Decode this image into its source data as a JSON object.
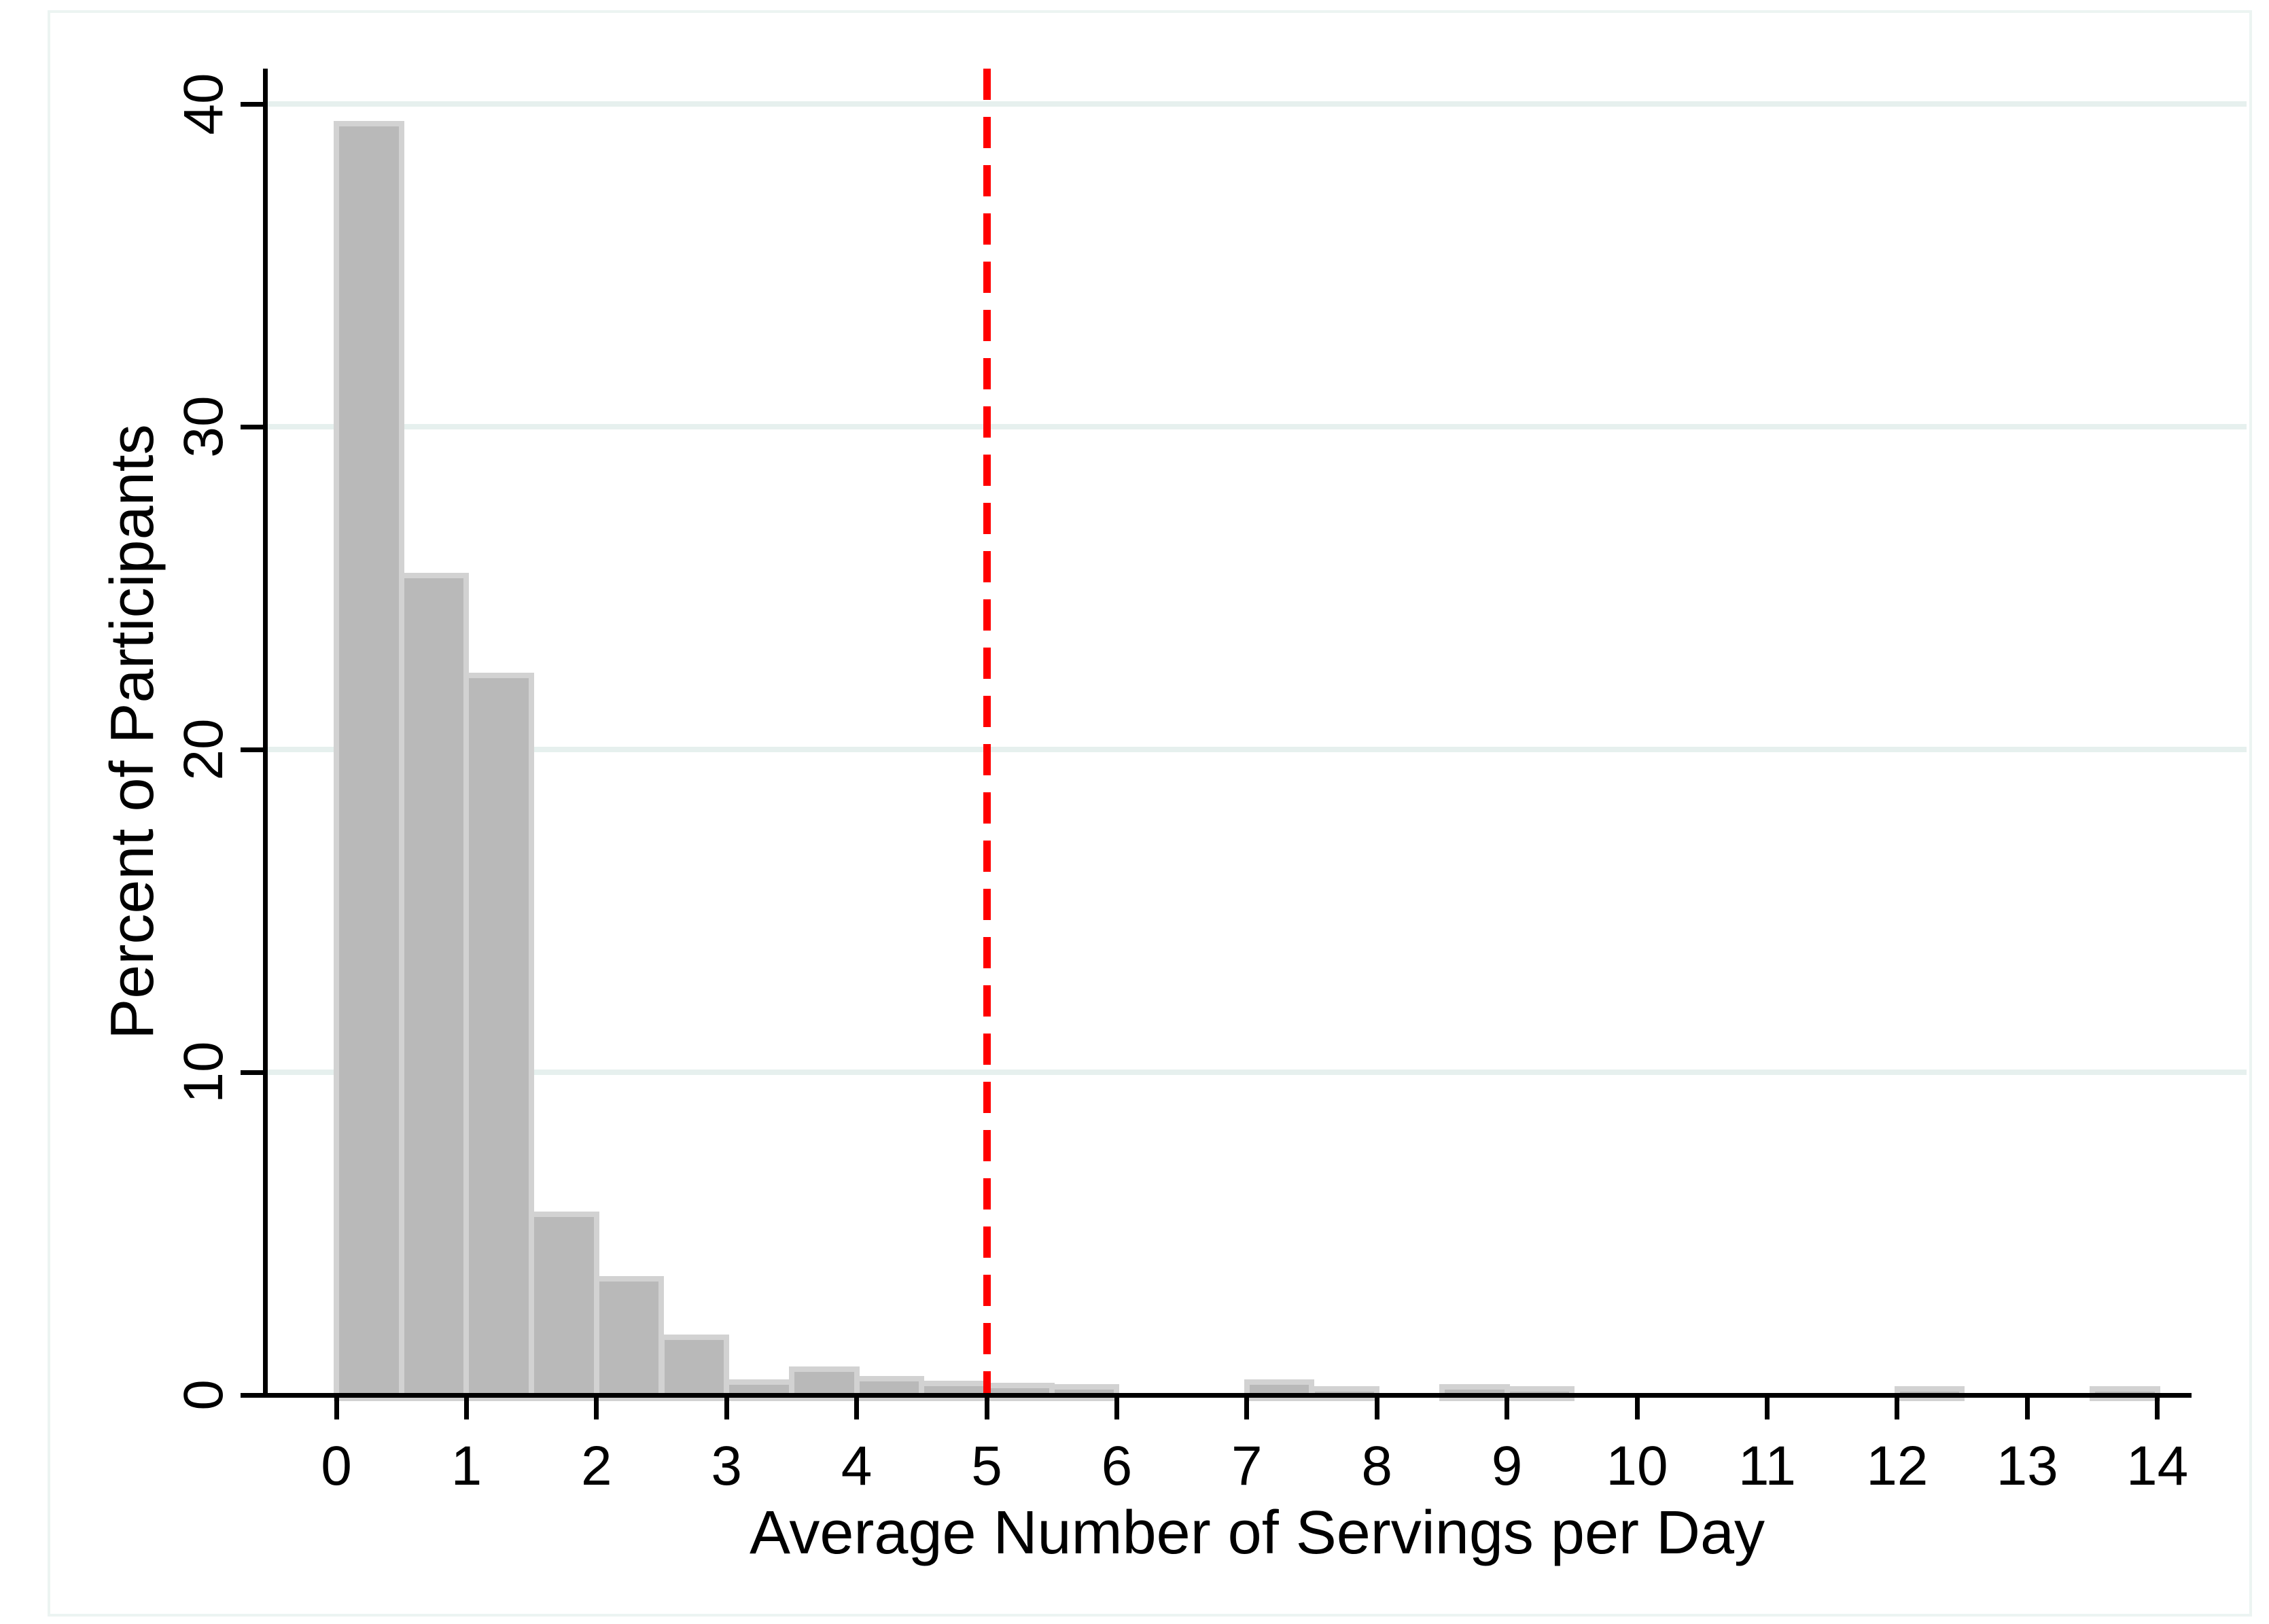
{
  "chart_data": {
    "type": "bar",
    "subtype": "histogram",
    "title": "",
    "xlabel": "Average Number of Servings per Day",
    "ylabel": "Percent of Participants",
    "x_tick_labels": [
      "0",
      "1",
      "2",
      "3",
      "4",
      "5",
      "6",
      "7",
      "8",
      "9",
      "10",
      "11",
      "12",
      "13",
      "14"
    ],
    "x_ticks": [
      0,
      1,
      2,
      3,
      4,
      5,
      6,
      7,
      8,
      9,
      10,
      11,
      12,
      13,
      14
    ],
    "y_tick_labels": [
      "0",
      "10",
      "20",
      "30",
      "40"
    ],
    "y_ticks": [
      0,
      10,
      20,
      30,
      40
    ],
    "x_range": [
      -0.55,
      14.7
    ],
    "y_range": [
      0,
      41
    ],
    "grid": "horizontal",
    "legend": "none",
    "bin_width": 0.5,
    "bins": [
      {
        "start": 0.0,
        "percent": 39.4
      },
      {
        "start": 0.5,
        "percent": 25.4
      },
      {
        "start": 1.0,
        "percent": 22.3
      },
      {
        "start": 1.5,
        "percent": 5.6
      },
      {
        "start": 2.0,
        "percent": 3.6
      },
      {
        "start": 2.5,
        "percent": 1.8
      },
      {
        "start": 3.0,
        "percent": 0.4
      },
      {
        "start": 3.5,
        "percent": 0.8
      },
      {
        "start": 4.0,
        "percent": 0.5
      },
      {
        "start": 4.5,
        "percent": 0.35
      },
      {
        "start": 5.0,
        "percent": 0.3
      },
      {
        "start": 5.5,
        "percent": 0.25
      },
      {
        "start": 7.0,
        "percent": 0.4
      },
      {
        "start": 7.5,
        "percent": 0.2
      },
      {
        "start": 8.5,
        "percent": 0.25
      },
      {
        "start": 9.0,
        "percent": 0.2
      },
      {
        "start": 12.0,
        "percent": 0.2
      },
      {
        "start": 13.5,
        "percent": 0.2
      }
    ],
    "reference_line": {
      "x": 5,
      "style": "dashed",
      "color": "#ff0000"
    },
    "colors": {
      "bar_fill": "#b9b9b9",
      "bar_border": "#d2d2d2",
      "gridline": "#e6f0ee",
      "axis": "#000000",
      "plot_border": "#ecf4f2",
      "background": "#ffffff",
      "text": "#000000"
    }
  }
}
